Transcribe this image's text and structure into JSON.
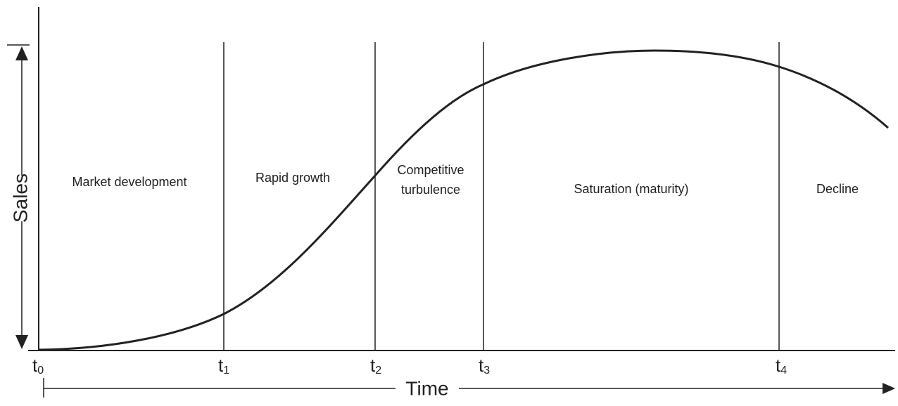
{
  "axes": {
    "y_label": "Sales",
    "x_label": "Time"
  },
  "markers": [
    {
      "base": "t",
      "sub": "0"
    },
    {
      "base": "t",
      "sub": "1"
    },
    {
      "base": "t",
      "sub": "2"
    },
    {
      "base": "t",
      "sub": "3"
    },
    {
      "base": "t",
      "sub": "4"
    }
  ],
  "stages": [
    {
      "lines": [
        "Market development"
      ]
    },
    {
      "lines": [
        "Rapid growth"
      ]
    },
    {
      "lines": [
        "Competitive",
        "turbulence"
      ]
    },
    {
      "lines": [
        "Saturation (maturity)"
      ]
    },
    {
      "lines": [
        "Decline"
      ]
    }
  ]
}
